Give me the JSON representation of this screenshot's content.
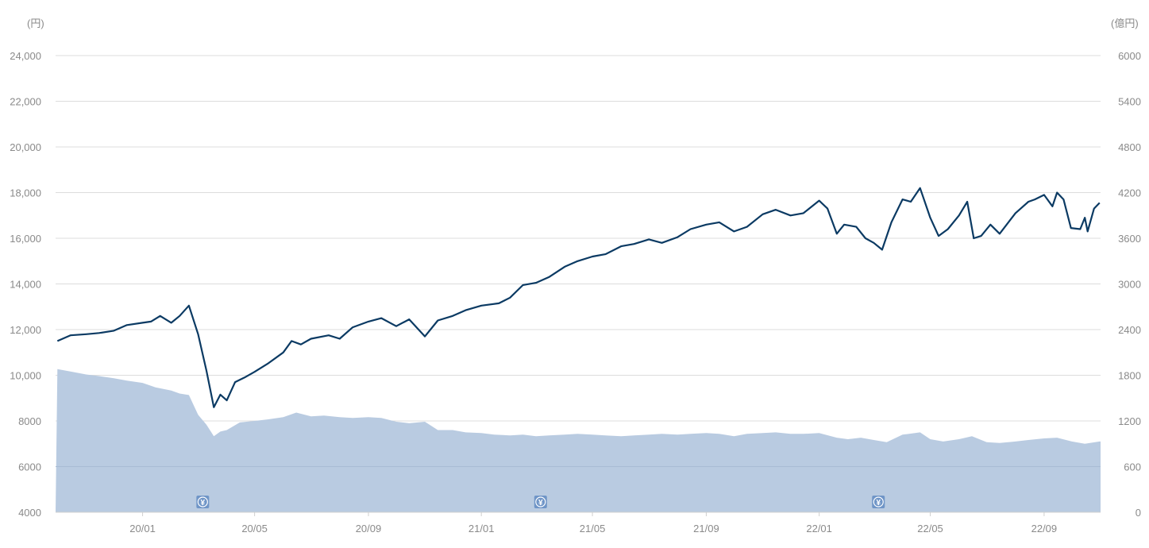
{
  "chart_data": {
    "type": "line",
    "title": "",
    "left_axis": {
      "unit": "(円)",
      "ticks": [
        "4000",
        "6000",
        "8000",
        "10,000",
        "12,000",
        "14,000",
        "16,000",
        "18,000",
        "20,000",
        "22,000",
        "24,000"
      ],
      "range": [
        4000,
        24000
      ]
    },
    "right_axis": {
      "unit": "(億円)",
      "ticks": [
        "0",
        "600",
        "1200",
        "1800",
        "2400",
        "3000",
        "3600",
        "4200",
        "4800",
        "5400",
        "6000"
      ],
      "range": [
        0,
        6000
      ]
    },
    "x_axis": {
      "ticks": [
        "20/01",
        "20/05",
        "20/09",
        "21/01",
        "21/05",
        "21/09",
        "22/01",
        "22/05",
        "22/09"
      ]
    },
    "grid": true,
    "series": [
      {
        "kind": "line",
        "axis": "left",
        "color": "#0b3a63",
        "points": [
          [
            "2019-10-01",
            11500
          ],
          [
            "2019-10-15",
            11750
          ],
          [
            "2019-11-01",
            11800
          ],
          [
            "2019-11-15",
            11850
          ],
          [
            "2019-12-01",
            11950
          ],
          [
            "2019-12-15",
            12200
          ],
          [
            "2020-01-01",
            12300
          ],
          [
            "2020-01-10",
            12350
          ],
          [
            "2020-01-20",
            12600
          ],
          [
            "2020-02-01",
            12300
          ],
          [
            "2020-02-10",
            12600
          ],
          [
            "2020-02-20",
            13050
          ],
          [
            "2020-03-01",
            11800
          ],
          [
            "2020-03-10",
            10200
          ],
          [
            "2020-03-18",
            8600
          ],
          [
            "2020-03-25",
            9150
          ],
          [
            "2020-04-01",
            8900
          ],
          [
            "2020-04-10",
            9700
          ],
          [
            "2020-04-20",
            9900
          ],
          [
            "2020-05-01",
            10150
          ],
          [
            "2020-05-15",
            10500
          ],
          [
            "2020-06-01",
            11000
          ],
          [
            "2020-06-10",
            11500
          ],
          [
            "2020-06-20",
            11350
          ],
          [
            "2020-07-01",
            11600
          ],
          [
            "2020-07-20",
            11750
          ],
          [
            "2020-08-01",
            11600
          ],
          [
            "2020-08-15",
            12100
          ],
          [
            "2020-09-01",
            12350
          ],
          [
            "2020-09-15",
            12500
          ],
          [
            "2020-10-01",
            12150
          ],
          [
            "2020-10-15",
            12450
          ],
          [
            "2020-11-01",
            11700
          ],
          [
            "2020-11-15",
            12400
          ],
          [
            "2020-12-01",
            12600
          ],
          [
            "2020-12-15",
            12850
          ],
          [
            "2021-01-01",
            13050
          ],
          [
            "2021-01-20",
            13150
          ],
          [
            "2021-02-01",
            13400
          ],
          [
            "2021-02-15",
            13950
          ],
          [
            "2021-03-01",
            14050
          ],
          [
            "2021-03-15",
            14300
          ],
          [
            "2021-04-01",
            14750
          ],
          [
            "2021-04-15",
            15000
          ],
          [
            "2021-05-01",
            15200
          ],
          [
            "2021-05-15",
            15300
          ],
          [
            "2021-06-01",
            15650
          ],
          [
            "2021-06-15",
            15750
          ],
          [
            "2021-07-01",
            15950
          ],
          [
            "2021-07-15",
            15800
          ],
          [
            "2021-08-01",
            16050
          ],
          [
            "2021-08-15",
            16400
          ],
          [
            "2021-09-01",
            16600
          ],
          [
            "2021-09-15",
            16700
          ],
          [
            "2021-10-01",
            16300
          ],
          [
            "2021-10-15",
            16500
          ],
          [
            "2021-11-01",
            17050
          ],
          [
            "2021-11-15",
            17250
          ],
          [
            "2021-12-01",
            17000
          ],
          [
            "2021-12-15",
            17100
          ],
          [
            "2022-01-01",
            17650
          ],
          [
            "2022-01-10",
            17300
          ],
          [
            "2022-01-20",
            16200
          ],
          [
            "2022-01-28",
            16600
          ],
          [
            "2022-02-10",
            16500
          ],
          [
            "2022-02-20",
            16000
          ],
          [
            "2022-03-01",
            15800
          ],
          [
            "2022-03-10",
            15500
          ],
          [
            "2022-03-20",
            16700
          ],
          [
            "2022-04-01",
            17700
          ],
          [
            "2022-04-10",
            17600
          ],
          [
            "2022-04-20",
            18200
          ],
          [
            "2022-05-01",
            16900
          ],
          [
            "2022-05-10",
            16100
          ],
          [
            "2022-05-20",
            16400
          ],
          [
            "2022-06-01",
            17000
          ],
          [
            "2022-06-10",
            17600
          ],
          [
            "2022-06-17",
            16000
          ],
          [
            "2022-06-25",
            16100
          ],
          [
            "2022-07-05",
            16600
          ],
          [
            "2022-07-15",
            16200
          ],
          [
            "2022-08-01",
            17100
          ],
          [
            "2022-08-15",
            17600
          ],
          [
            "2022-08-22",
            17700
          ],
          [
            "2022-09-01",
            17900
          ],
          [
            "2022-09-10",
            17400
          ],
          [
            "2022-09-15",
            18000
          ],
          [
            "2022-09-22",
            17700
          ],
          [
            "2022-09-30",
            16450
          ],
          [
            "2022-10-10",
            16400
          ],
          [
            "2022-10-15",
            16900
          ],
          [
            "2022-10-18",
            16300
          ],
          [
            "2022-10-25",
            17300
          ],
          [
            "2022-10-31",
            17550
          ]
        ]
      },
      {
        "kind": "area",
        "axis": "right",
        "color": "#b9cbe1",
        "points": [
          [
            "2019-10-01",
            1880
          ],
          [
            "2019-10-15",
            1850
          ],
          [
            "2019-11-01",
            1810
          ],
          [
            "2019-11-15",
            1790
          ],
          [
            "2019-12-01",
            1760
          ],
          [
            "2019-12-15",
            1730
          ],
          [
            "2020-01-01",
            1700
          ],
          [
            "2020-01-15",
            1640
          ],
          [
            "2020-02-01",
            1600
          ],
          [
            "2020-02-10",
            1560
          ],
          [
            "2020-02-20",
            1540
          ],
          [
            "2020-03-01",
            1280
          ],
          [
            "2020-03-10",
            1150
          ],
          [
            "2020-03-18",
            1000
          ],
          [
            "2020-03-25",
            1060
          ],
          [
            "2020-04-01",
            1080
          ],
          [
            "2020-04-15",
            1180
          ],
          [
            "2020-05-01",
            1200
          ],
          [
            "2020-05-15",
            1220
          ],
          [
            "2020-06-01",
            1250
          ],
          [
            "2020-06-15",
            1310
          ],
          [
            "2020-07-01",
            1260
          ],
          [
            "2020-07-15",
            1270
          ],
          [
            "2020-08-01",
            1250
          ],
          [
            "2020-08-15",
            1240
          ],
          [
            "2020-09-01",
            1250
          ],
          [
            "2020-09-15",
            1240
          ],
          [
            "2020-10-01",
            1190
          ],
          [
            "2020-10-15",
            1170
          ],
          [
            "2020-11-01",
            1190
          ],
          [
            "2020-11-15",
            1080
          ],
          [
            "2020-12-01",
            1080
          ],
          [
            "2020-12-15",
            1050
          ],
          [
            "2021-01-01",
            1040
          ],
          [
            "2021-01-15",
            1020
          ],
          [
            "2021-02-01",
            1010
          ],
          [
            "2021-02-15",
            1020
          ],
          [
            "2021-03-01",
            1000
          ],
          [
            "2021-03-15",
            1010
          ],
          [
            "2021-04-01",
            1020
          ],
          [
            "2021-04-15",
            1030
          ],
          [
            "2021-05-01",
            1020
          ],
          [
            "2021-05-15",
            1010
          ],
          [
            "2021-06-01",
            1000
          ],
          [
            "2021-06-15",
            1010
          ],
          [
            "2021-07-01",
            1020
          ],
          [
            "2021-07-15",
            1030
          ],
          [
            "2021-08-01",
            1020
          ],
          [
            "2021-08-15",
            1030
          ],
          [
            "2021-09-01",
            1040
          ],
          [
            "2021-09-15",
            1030
          ],
          [
            "2021-10-01",
            1000
          ],
          [
            "2021-10-15",
            1030
          ],
          [
            "2021-11-01",
            1040
          ],
          [
            "2021-11-15",
            1050
          ],
          [
            "2021-12-01",
            1030
          ],
          [
            "2021-12-15",
            1030
          ],
          [
            "2022-01-01",
            1040
          ],
          [
            "2022-01-20",
            980
          ],
          [
            "2022-02-01",
            960
          ],
          [
            "2022-02-15",
            980
          ],
          [
            "2022-03-01",
            950
          ],
          [
            "2022-03-15",
            920
          ],
          [
            "2022-04-01",
            1020
          ],
          [
            "2022-04-20",
            1050
          ],
          [
            "2022-05-01",
            960
          ],
          [
            "2022-05-15",
            930
          ],
          [
            "2022-06-01",
            960
          ],
          [
            "2022-06-15",
            1000
          ],
          [
            "2022-07-01",
            920
          ],
          [
            "2022-07-15",
            910
          ],
          [
            "2022-08-01",
            930
          ],
          [
            "2022-08-15",
            950
          ],
          [
            "2022-09-01",
            970
          ],
          [
            "2022-09-15",
            980
          ],
          [
            "2022-10-01",
            930
          ],
          [
            "2022-10-15",
            900
          ],
          [
            "2022-10-31",
            930
          ]
        ]
      }
    ],
    "markers": [
      {
        "date": "2020-03-06",
        "symbol": "¥"
      },
      {
        "date": "2021-03-06",
        "symbol": "¥"
      },
      {
        "date": "2022-03-06",
        "symbol": "¥"
      }
    ]
  }
}
